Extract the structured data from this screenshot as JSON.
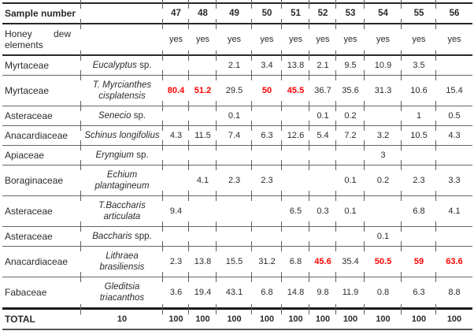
{
  "colors": {
    "highlight_red": "#ff0000",
    "text": "#2b2b2b",
    "rule_thin": "#666666",
    "rule_thick": "#262626"
  },
  "table": {
    "header_label": "Sample number",
    "sample_numbers": [
      "47",
      "48",
      "49",
      "50",
      "51",
      "52",
      "53",
      "54",
      "55",
      "56"
    ],
    "honeydew": {
      "words": [
        "Honey",
        "dew"
      ],
      "second_line": "elements",
      "values": [
        "yes",
        "yes",
        "yes",
        "yes",
        "yes",
        "yes",
        "yes",
        "yes",
        "yes",
        "yes"
      ]
    },
    "rows": [
      {
        "family": "Myrtaceae",
        "name_lines": [
          "Eucalyptus"
        ],
        "suffix": "sp.",
        "values": [
          "",
          "",
          "2.1",
          "3.4",
          "13.8",
          "2.1",
          "9.5",
          "10.9",
          "3.5",
          ""
        ],
        "red": []
      },
      {
        "family": "Myrtaceae",
        "name_lines": [
          "T. Myrcianthes",
          "cisplatensis"
        ],
        "suffix": "",
        "values": [
          "80.4",
          "51.2",
          "29.5",
          "50",
          "45.5",
          "36.7",
          "35.6",
          "31.3",
          "10.6",
          "15.4"
        ],
        "red": [
          0,
          1,
          3,
          4
        ]
      },
      {
        "family": "Asteraceae",
        "name_lines": [
          "Senecio"
        ],
        "suffix": "sp.",
        "values": [
          "",
          "",
          "0.1",
          "",
          "",
          "0.1",
          "0.2",
          "",
          "1",
          "0.5"
        ],
        "red": []
      },
      {
        "family": "Anacardiaceae",
        "name_lines": [
          "Schinus longifolius"
        ],
        "suffix": "",
        "values": [
          "4.3",
          "11.5",
          "7.4",
          "6.3",
          "12.6",
          "5.4",
          "7.2",
          "3.2",
          "10.5",
          "4.3"
        ],
        "red": []
      },
      {
        "family": "Apiaceae",
        "name_lines": [
          "Eryngium"
        ],
        "suffix": "sp.",
        "values": [
          "",
          "",
          "",
          "",
          "",
          "",
          "",
          "3",
          "",
          ""
        ],
        "red": []
      },
      {
        "family": "Boraginaceae",
        "name_lines": [
          "Echium",
          "plantagineum"
        ],
        "suffix": "",
        "values": [
          "",
          "4.1",
          "2.3",
          "2.3",
          "",
          "",
          "0.1",
          "0.2",
          "2.3",
          "3.3"
        ],
        "red": []
      },
      {
        "family": "Asteraceae",
        "name_lines": [
          "T.Baccharis",
          "articulata"
        ],
        "suffix": "",
        "values": [
          "9.4",
          "",
          "",
          "",
          "6.5",
          "0.3",
          "0.1",
          "",
          "6.8",
          "4.1"
        ],
        "red": []
      },
      {
        "family": "Asteraceae",
        "name_lines": [
          "Baccharis"
        ],
        "suffix": "spp.",
        "values": [
          "",
          "",
          "",
          "",
          "",
          "",
          "",
          "0.1",
          "",
          ""
        ],
        "red": []
      },
      {
        "family": "Anacardiaceae",
        "name_lines": [
          "Lithraea",
          "brasiliensis"
        ],
        "suffix": "",
        "values": [
          "2.3",
          "13.8",
          "15.5",
          "31.2",
          "6.8",
          "45.6",
          "35.4",
          "50.5",
          "59",
          "63.6"
        ],
        "red": [
          5,
          7,
          8,
          9
        ]
      },
      {
        "family": "Fabaceae",
        "name_lines": [
          "Gleditsia",
          "triacanthos"
        ],
        "suffix": "",
        "values": [
          "3.6",
          "19.4",
          "43.1",
          "6.8",
          "14.8",
          "9.8",
          "11.9",
          "0.8",
          "6.3",
          "8.8"
        ],
        "red": []
      }
    ],
    "total": {
      "label": "TOTAL",
      "count": "10",
      "values": [
        "100",
        "100",
        "100",
        "100",
        "100",
        "100",
        "100",
        "100",
        "100",
        "100"
      ]
    }
  }
}
